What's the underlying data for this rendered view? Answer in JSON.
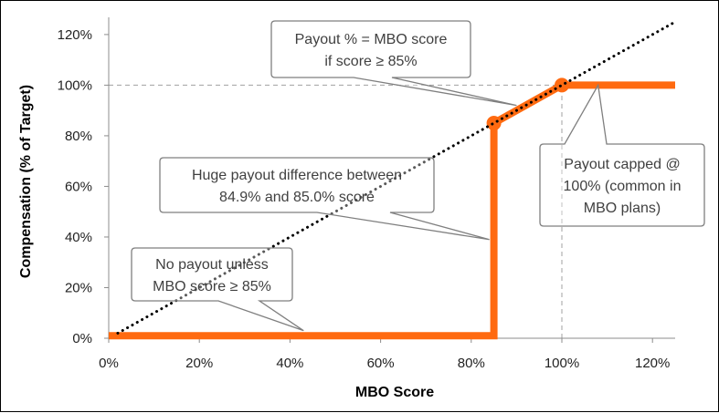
{
  "chart_data": {
    "type": "line",
    "title": "",
    "xlabel": "MBO Score",
    "ylabel": "Compensation (% of Target)",
    "xlim": [
      0,
      125
    ],
    "ylim": [
      0,
      125
    ],
    "x_ticks": [
      "0%",
      "20%",
      "40%",
      "60%",
      "80%",
      "100%",
      "120%"
    ],
    "y_ticks": [
      "0%",
      "20%",
      "40%",
      "60%",
      "80%",
      "100%",
      "120%"
    ],
    "grid": false,
    "legend": "none",
    "series": [
      {
        "style": "solid",
        "color": "#ff6a10",
        "points": [
          [
            0,
            1
          ],
          [
            85,
            1
          ],
          [
            85,
            85
          ],
          [
            100,
            100
          ],
          [
            125,
            100
          ]
        ],
        "markers": [
          [
            85,
            85
          ],
          [
            100,
            100
          ]
        ]
      },
      {
        "style": "dotted",
        "color": "#000000",
        "points": [
          [
            2,
            2
          ],
          [
            125,
            125
          ]
        ]
      }
    ],
    "reference_lines": [
      {
        "orientation": "horizontal",
        "value": 100,
        "color": "#a0a0a0",
        "style": "dashed"
      },
      {
        "orientation": "vertical",
        "value": 100,
        "color": "#a0a0a0",
        "style": "dashed"
      }
    ],
    "annotations": [
      {
        "lines": [
          "Payout % = MBO score",
          "if score ≥ 85%"
        ],
        "target": [
          90,
          92
        ]
      },
      {
        "lines": [
          "Huge payout difference between",
          "84.9% and 85.0% score"
        ],
        "target": [
          84,
          39
        ]
      },
      {
        "lines": [
          "No payout unless",
          "MBO score ≥ 85%"
        ],
        "target": [
          43,
          3
        ]
      },
      {
        "lines": [
          "Payout capped @",
          "100% (common in",
          "MBO plans)"
        ],
        "target": [
          108,
          100
        ]
      }
    ]
  }
}
